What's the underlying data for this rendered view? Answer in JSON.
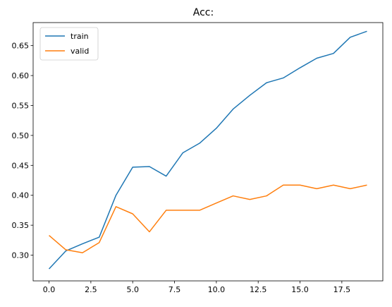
{
  "chart_data": {
    "type": "line",
    "title": "Acc:",
    "xlabel": "",
    "ylabel": "",
    "xlim": [
      -0.95,
      19.95
    ],
    "ylim": [
      0.257,
      0.6885
    ],
    "xticks": [
      0.0,
      2.5,
      5.0,
      7.5,
      10.0,
      12.5,
      15.0,
      17.5
    ],
    "xtick_labels": [
      "0.0",
      "2.5",
      "5.0",
      "7.5",
      "10.0",
      "12.5",
      "15.0",
      "17.5"
    ],
    "yticks": [
      0.3,
      0.35,
      0.4,
      0.45,
      0.5,
      0.55,
      0.6,
      0.65
    ],
    "ytick_labels": [
      "0.30",
      "0.35",
      "0.40",
      "0.45",
      "0.50",
      "0.55",
      "0.60",
      "0.65"
    ],
    "grid": false,
    "legend_position": "top-left",
    "x": [
      0,
      1,
      2,
      3,
      4,
      5,
      6,
      7,
      8,
      9,
      10,
      11,
      12,
      13,
      14,
      15,
      16,
      17,
      18,
      19
    ],
    "series": [
      {
        "name": "train",
        "color": "#1f77b4",
        "values": [
          0.277,
          0.307,
          0.319,
          0.33,
          0.4,
          0.447,
          0.448,
          0.432,
          0.471,
          0.487,
          0.512,
          0.544,
          0.567,
          0.588,
          0.596,
          0.613,
          0.629,
          0.637,
          0.664,
          0.674
        ]
      },
      {
        "name": "valid",
        "color": "#ff7f0e",
        "values": [
          0.333,
          0.309,
          0.304,
          0.321,
          0.381,
          0.369,
          0.339,
          0.375,
          0.375,
          0.375,
          0.387,
          0.399,
          0.393,
          0.399,
          0.417,
          0.417,
          0.411,
          0.417,
          0.411,
          0.417
        ]
      }
    ]
  }
}
